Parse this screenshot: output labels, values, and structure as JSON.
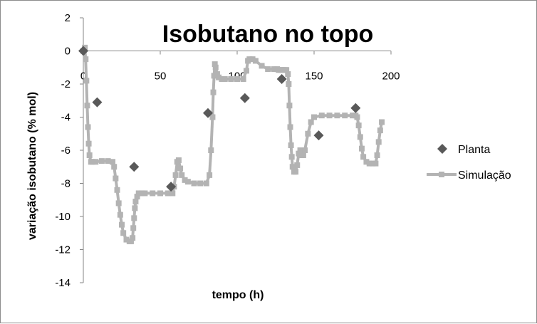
{
  "chart_data": {
    "type": "scatter",
    "title": "Isobutano no topo",
    "xlabel": "tempo (h)",
    "ylabel": "variação isobutano (% mol)",
    "xlim": [
      0,
      200
    ],
    "ylim": [
      -14,
      2
    ],
    "x_ticks": [
      "0",
      "50",
      "100",
      "150",
      "200"
    ],
    "y_ticks": [
      "2",
      "0",
      "-2",
      "-4",
      "-6",
      "-8",
      "-10",
      "-12",
      "-14"
    ],
    "grid": false,
    "legend_position": "right",
    "series": [
      {
        "name": "Planta",
        "marker": "diamond",
        "color": "#595959",
        "x": [
          0,
          9,
          33,
          57,
          81,
          105,
          129,
          153,
          177
        ],
        "y": [
          0,
          -3.1,
          -7.0,
          -8.2,
          -3.75,
          -2.85,
          -1.7,
          -5.1,
          -3.45
        ]
      },
      {
        "name": "Simulação",
        "marker": "square",
        "color": "#b3b3b3",
        "x": [
          0,
          1,
          1.5,
          2,
          2.5,
          3,
          3.5,
          4,
          5,
          6,
          8,
          12,
          16,
          19,
          20,
          21,
          22,
          23,
          24,
          25,
          26,
          28,
          30,
          31,
          32,
          32.5,
          33,
          33.5,
          34,
          35,
          36,
          38,
          40,
          45,
          50,
          55,
          58,
          59,
          60,
          61,
          62,
          63,
          64,
          66,
          68,
          72,
          76,
          80,
          82,
          83,
          84,
          84.5,
          85,
          85.5,
          86,
          87,
          88,
          90,
          92,
          96,
          100,
          104,
          106,
          107,
          108,
          110,
          112,
          116,
          120,
          124,
          126,
          127,
          128,
          129,
          130,
          131,
          132,
          133,
          133.5,
          134,
          134.5,
          135,
          135.5,
          136,
          137,
          138,
          139,
          140,
          141,
          142,
          143,
          144,
          146,
          148,
          150,
          155,
          160,
          165,
          170,
          175,
          177,
          178,
          179,
          180,
          181,
          182,
          184,
          186,
          188,
          190,
          191,
          192,
          193,
          194
        ],
        "y": [
          0,
          0.2,
          -0.5,
          -1.8,
          -3.3,
          -4.6,
          -5.6,
          -6.3,
          -6.7,
          -6.7,
          -6.7,
          -6.65,
          -6.65,
          -6.7,
          -7.0,
          -7.7,
          -8.4,
          -9.2,
          -9.9,
          -10.5,
          -11.0,
          -11.4,
          -11.5,
          -11.5,
          -11.3,
          -10.7,
          -10.1,
          -9.5,
          -9.1,
          -8.8,
          -8.6,
          -8.6,
          -8.6,
          -8.6,
          -8.6,
          -8.6,
          -8.6,
          -8.2,
          -7.5,
          -6.7,
          -6.6,
          -7.1,
          -7.5,
          -7.8,
          -7.9,
          -8.0,
          -8.0,
          -8.0,
          -7.5,
          -6.0,
          -4.0,
          -2.5,
          -1.5,
          -0.8,
          -1.0,
          -1.4,
          -1.6,
          -1.7,
          -1.7,
          -1.7,
          -1.7,
          -1.7,
          -1.2,
          -0.6,
          -0.5,
          -0.5,
          -0.6,
          -0.9,
          -1.1,
          -1.1,
          -1.1,
          -1.15,
          -1.15,
          -1.15,
          -1.15,
          -1.15,
          -1.15,
          -1.4,
          -2.0,
          -3.3,
          -4.6,
          -5.7,
          -6.4,
          -7.0,
          -7.3,
          -7.3,
          -6.9,
          -6.2,
          -6.0,
          -6.3,
          -6.3,
          -6.0,
          -5.0,
          -4.3,
          -4.0,
          -3.9,
          -3.9,
          -3.9,
          -3.9,
          -3.9,
          -3.9,
          -4.0,
          -4.5,
          -5.2,
          -5.9,
          -6.4,
          -6.7,
          -6.8,
          -6.8,
          -6.8,
          -6.3,
          -5.5,
          -4.8,
          -4.3
        ]
      }
    ]
  }
}
